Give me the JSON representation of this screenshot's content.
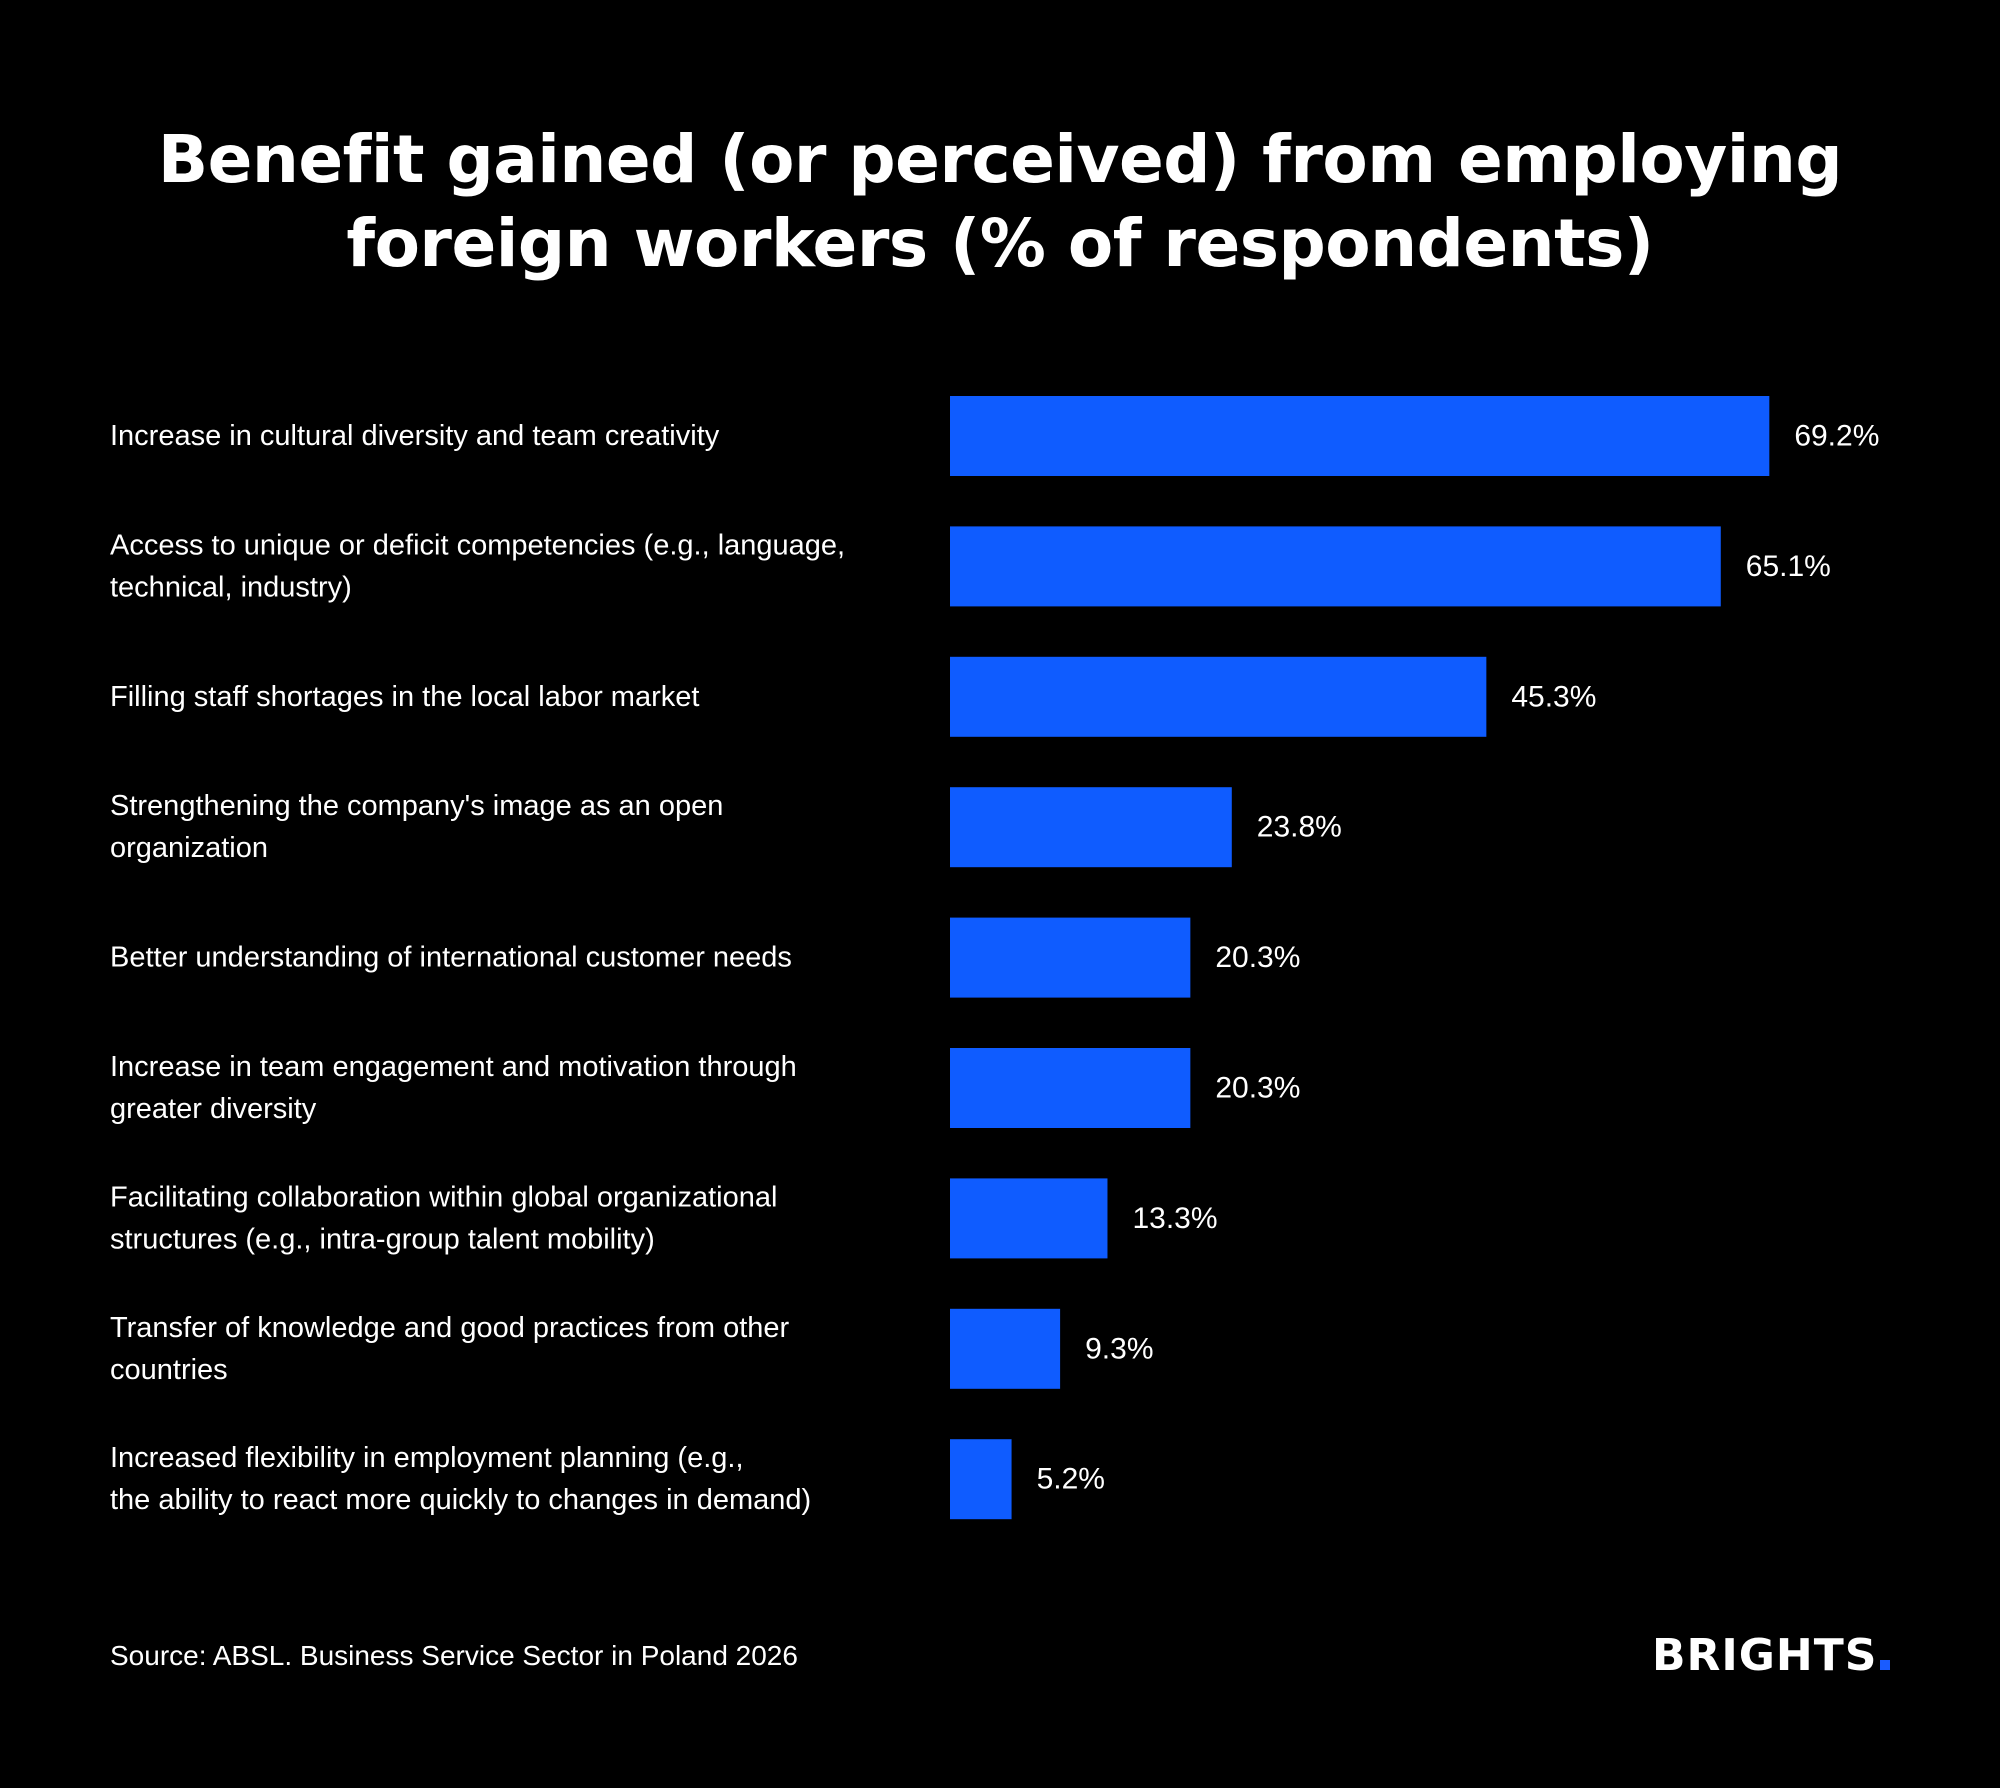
{
  "title_lines": [
    "Benefit gained (or perceived) from employing",
    "foreign workers (% of respondents)"
  ],
  "colors": {
    "background": "#000000",
    "bar": "#0f5cff",
    "text": "#ffffff"
  },
  "chart_data": {
    "type": "bar",
    "orientation": "horizontal",
    "categories": [
      [
        "Increase in cultural diversity and team creativity"
      ],
      [
        "Access to unique or deficit competencies (e.g., language,",
        "technical, industry)"
      ],
      [
        "Filling staff shortages in the local labor market"
      ],
      [
        "Strengthening the company's image as an open",
        "organization"
      ],
      [
        "Better understanding of international customer needs"
      ],
      [
        "Increase in team engagement and motivation through",
        "greater diversity"
      ],
      [
        "Facilitating collaboration within global organizational",
        "structures (e.g., intra-group talent mobility)"
      ],
      [
        "Transfer of knowledge and good practices from other",
        "countries"
      ],
      [
        "Increased flexibility in employment planning (e.g.,",
        "the ability to react more quickly to changes in demand)"
      ]
    ],
    "values": [
      69.2,
      65.1,
      45.3,
      23.8,
      20.3,
      20.3,
      13.3,
      9.3,
      5.2
    ],
    "value_labels": [
      "69.2%",
      "65.1%",
      "45.3%",
      "23.8%",
      "20.3%",
      "20.3%",
      "13.3%",
      "9.3%",
      "5.2%"
    ],
    "grid": false,
    "legend": "none"
  },
  "footer": {
    "source": "Source: ABSL. Business Service Sector in Poland 2026",
    "logo": "BRIGHTS"
  }
}
